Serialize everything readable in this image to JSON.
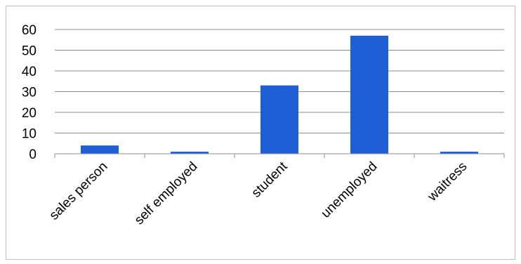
{
  "chart_data": {
    "type": "bar",
    "title": "",
    "xlabel": "",
    "ylabel": "",
    "categories": [
      "sales person",
      "self employed",
      "student",
      "unemployed",
      "waitress"
    ],
    "values": [
      4,
      1,
      33,
      57,
      1
    ],
    "ylim": [
      0,
      60
    ],
    "yticks": [
      "0",
      "10",
      "20",
      "30",
      "40",
      "50",
      "60"
    ],
    "grid": true,
    "legend": "none",
    "bar_color": "#1f5fd6",
    "gridline_color": "#8c8c8c",
    "axis_color": "#8c8c8c"
  }
}
